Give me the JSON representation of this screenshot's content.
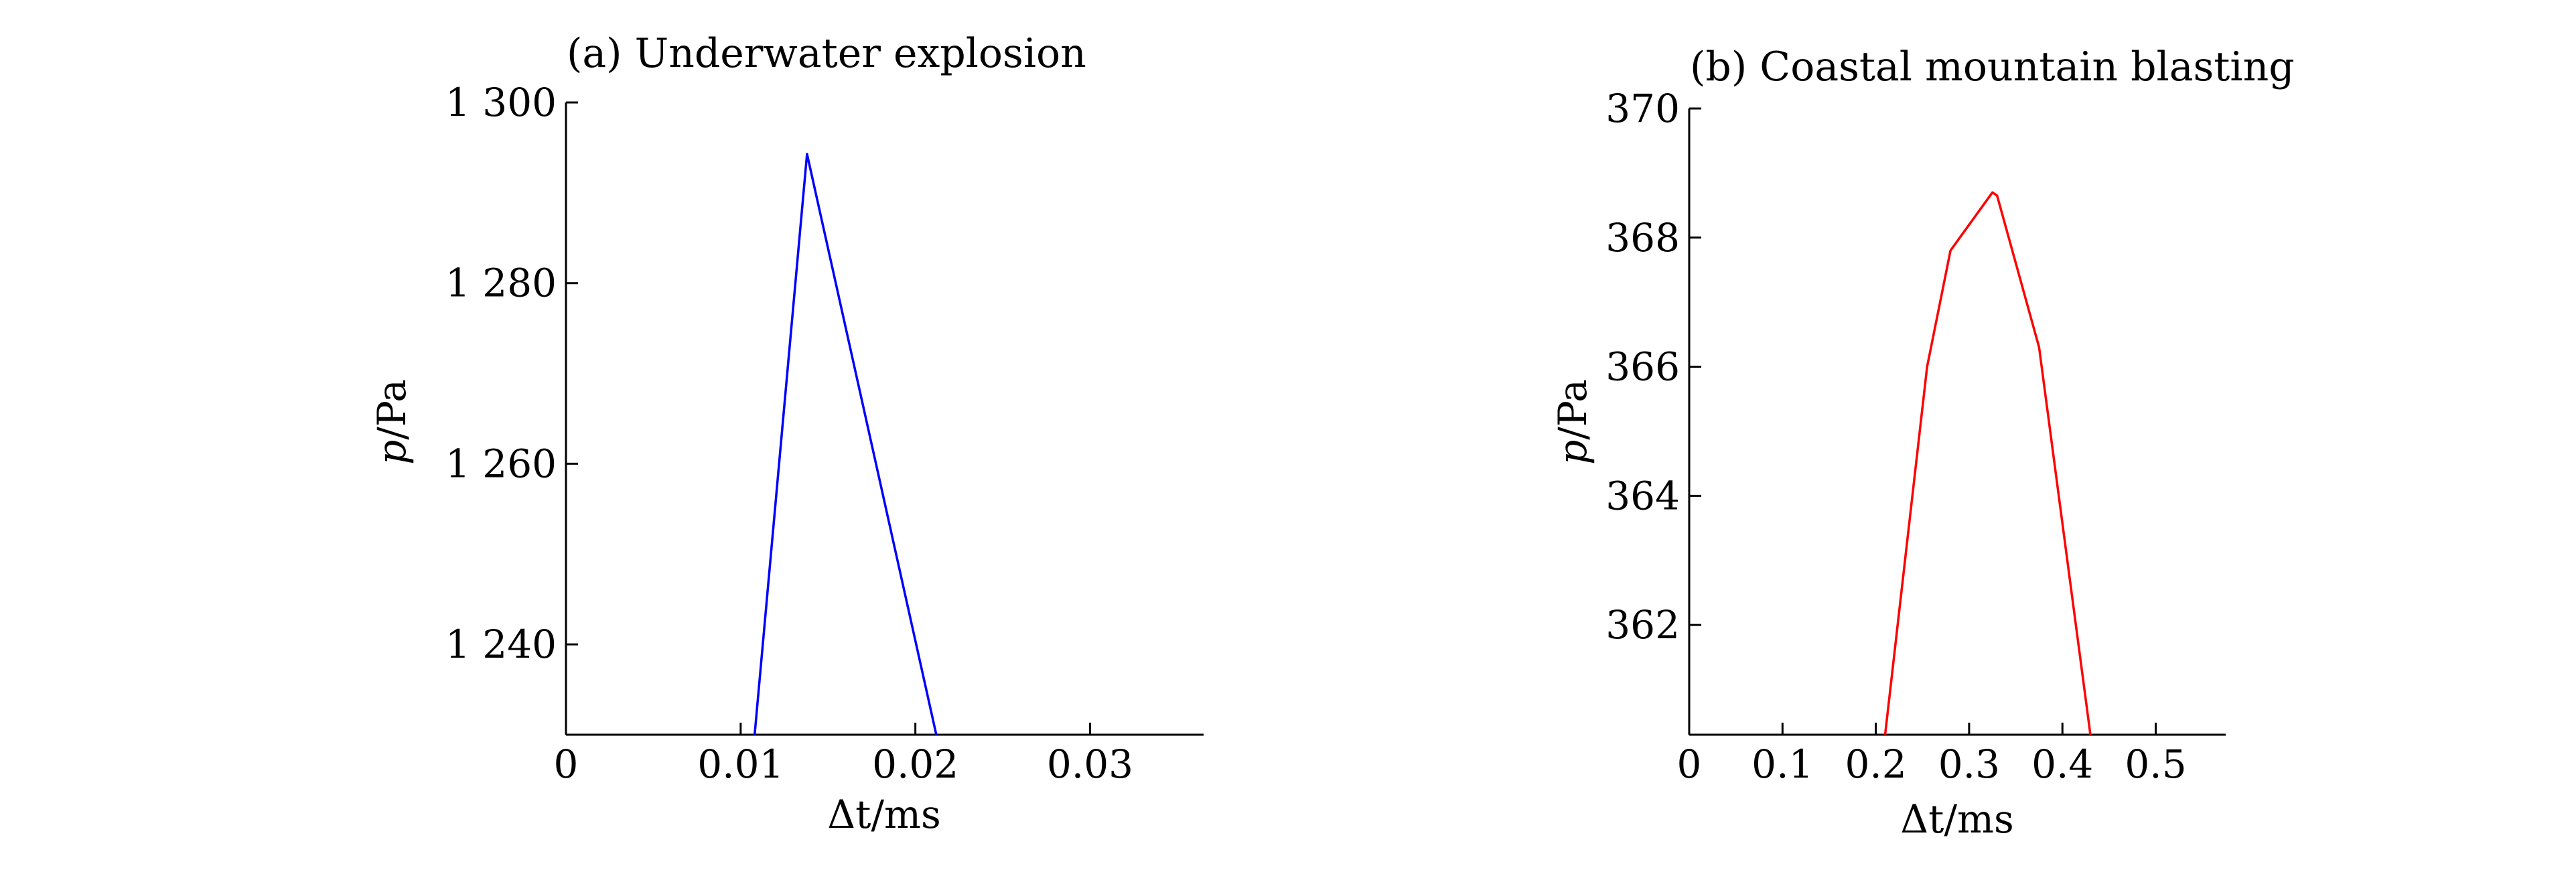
{
  "chart_data": [
    {
      "type": "line",
      "title": "(a) Underwater explosion",
      "xlabel_symbol": "Δt",
      "xlabel_unit": "/ms",
      "ylabel_symbol": "p",
      "ylabel_unit": "/Pa",
      "xlim": [
        0,
        0.0365
      ],
      "ylim": [
        1230,
        1300
      ],
      "xticks": [
        0,
        0.01,
        0.02,
        0.03
      ],
      "xtick_labels": [
        "0",
        "0.01",
        "0.02",
        "0.03"
      ],
      "yticks": [
        1240,
        1260,
        1280,
        1300
      ],
      "ytick_labels": [
        "1 240",
        "1 260",
        "1 280",
        "1 300"
      ],
      "grid": false,
      "series": [
        {
          "color": "#0000ff",
          "x": [
            0.0108,
            0.0138,
            0.0212
          ],
          "y": [
            1230,
            1294.3,
            1230
          ]
        }
      ]
    },
    {
      "type": "line",
      "title": "(b) Coastal mountain blasting",
      "xlabel_symbol": "Δt",
      "xlabel_unit": "/ms",
      "ylabel_symbol": "p",
      "ylabel_unit": "/Pa",
      "xlim": [
        0,
        0.575
      ],
      "ylim": [
        360.3,
        370
      ],
      "xticks": [
        0,
        0.1,
        0.2,
        0.3,
        0.4,
        0.5
      ],
      "xtick_labels": [
        "0",
        "0.1",
        "0.2",
        "0.3",
        "0.4",
        "0.5"
      ],
      "yticks": [
        362,
        364,
        366,
        368,
        370
      ],
      "ytick_labels": [
        "362",
        "364",
        "366",
        "368",
        "370"
      ],
      "grid": false,
      "series": [
        {
          "color": "#ff0000",
          "x": [
            0.21,
            0.255,
            0.28,
            0.325,
            0.33,
            0.375,
            0.43
          ],
          "y": [
            360.3,
            366.0,
            367.8,
            368.7,
            368.65,
            366.3,
            360.3
          ]
        }
      ]
    }
  ]
}
